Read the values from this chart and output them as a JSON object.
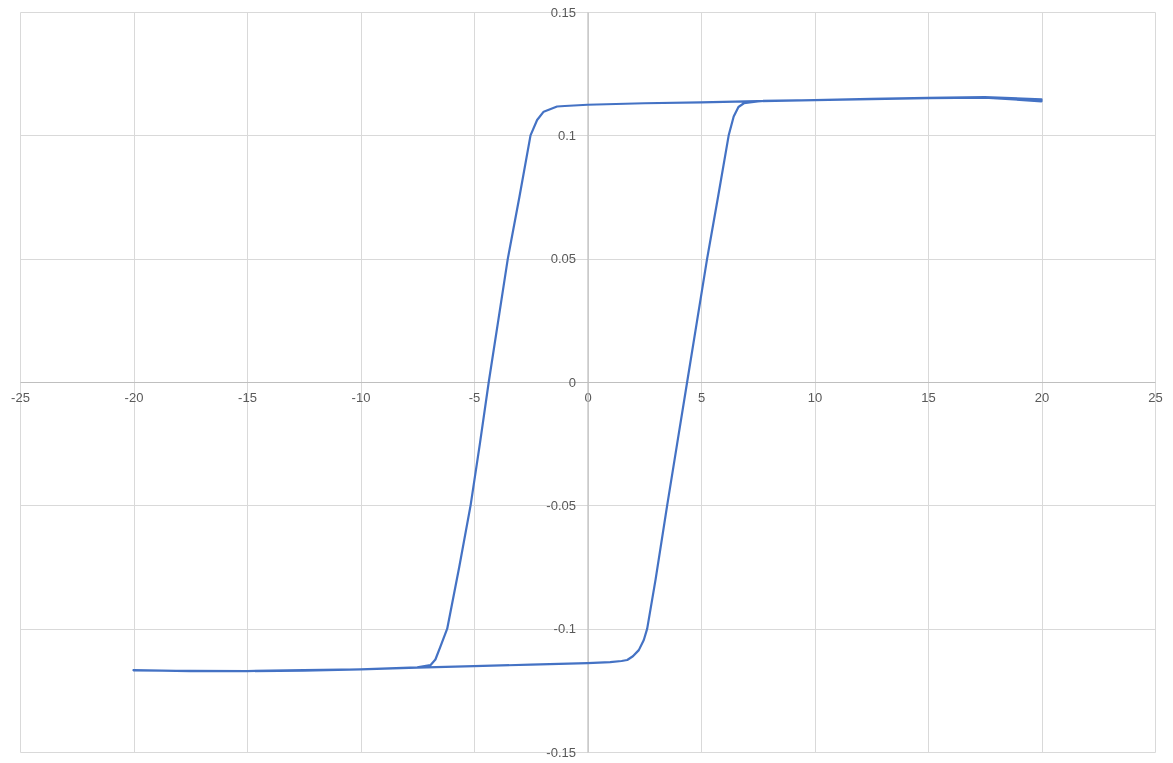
{
  "chart_data": {
    "type": "line",
    "color": "#4472c4",
    "x": [
      -20,
      -17.5,
      -15,
      -12.5,
      -10,
      -7.5,
      -5,
      -2.5,
      0,
      1,
      1.5,
      1.75,
      2.0,
      2.26,
      2.48,
      2.63,
      3.0,
      3.51,
      3.95,
      4.39,
      4.83,
      5.27,
      5.75,
      6.22,
      6.44,
      6.65,
      6.89,
      7.5,
      10,
      12.5,
      15,
      17.5,
      20,
      20,
      17.5,
      15,
      12.5,
      10,
      7.5,
      5,
      2.5,
      0,
      -1,
      -1.34,
      -1.93,
      -2.22,
      -2.51,
      -3.0,
      -3.51,
      -3.93,
      -4.35,
      -4.74,
      -5.15,
      -5.65,
      -6.18,
      -6.48,
      -6.7,
      -6.92,
      -7.5,
      -10,
      -12.5,
      -15,
      -17.5,
      -20
    ],
    "values": [
      -0.1168,
      -0.1172,
      -0.1172,
      -0.1168,
      -0.1165,
      -0.1158,
      -0.1152,
      -0.1146,
      -0.114,
      -0.1136,
      -0.1131,
      -0.1127,
      -0.1112,
      -0.1087,
      -0.1046,
      -0.1,
      -0.08,
      -0.05,
      -0.025,
      0,
      0.025,
      0.05,
      0.075,
      0.1,
      0.1076,
      0.1115,
      0.113,
      0.1138,
      0.1143,
      0.1148,
      0.1152,
      0.1155,
      0.1146,
      0.1138,
      0.1153,
      0.1151,
      0.1147,
      0.1143,
      0.1139,
      0.1134,
      0.113,
      0.1124,
      0.1119,
      0.1117,
      0.1096,
      0.1062,
      0.1,
      0.075,
      0.05,
      0.025,
      0,
      -0.025,
      -0.05,
      -0.075,
      -0.1,
      -0.1073,
      -0.1125,
      -0.1148,
      -0.1157,
      -0.1165,
      -0.117,
      -0.1172,
      -0.1171,
      -0.1169
    ],
    "xlim": [
      -25,
      25
    ],
    "ylim": [
      -0.15,
      0.15
    ],
    "xticks": [
      -25,
      -20,
      -15,
      -10,
      -5,
      0,
      5,
      10,
      15,
      20,
      25
    ],
    "yticks": [
      -0.15,
      -0.1,
      -0.05,
      0,
      0.05,
      0.1,
      0.15
    ],
    "grid": true
  }
}
